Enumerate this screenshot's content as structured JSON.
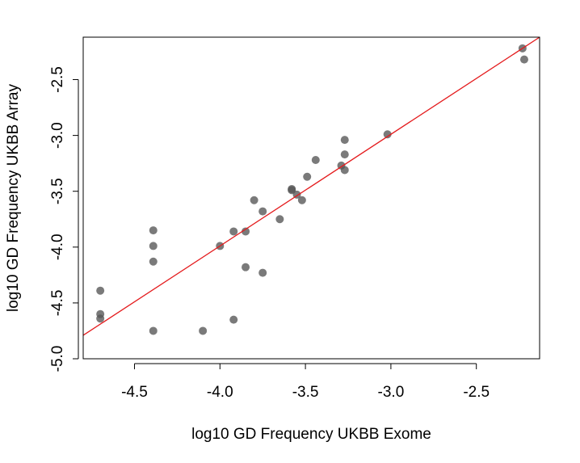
{
  "chart_data": {
    "type": "scatter",
    "title": "",
    "xlabel": "log10 GD Frequency UKBB Exome",
    "ylabel": "log10 GD Frequency UKBB Array",
    "xlim": [
      -4.8,
      -2.13
    ],
    "ylim": [
      -5.0,
      -2.12
    ],
    "x_ticks": [
      -4.5,
      -4.0,
      -3.5,
      -3.0,
      -2.5
    ],
    "x_tick_labels": [
      "-4.5",
      "-4.0",
      "-3.5",
      "-3.0",
      "-2.5"
    ],
    "y_ticks": [
      -5.0,
      -4.5,
      -4.0,
      -3.5,
      -3.0,
      -2.5
    ],
    "y_tick_labels": [
      "-5.0",
      "-4.5",
      "-4.0",
      "-3.5",
      "-3.0",
      "-2.5"
    ],
    "grid": false,
    "legend": "none",
    "point_color": "#555555",
    "line_color": "#e41a1c",
    "regression_line": {
      "x": [
        -4.8,
        -2.13
      ],
      "y": [
        -4.79,
        -2.12
      ]
    },
    "series": [
      {
        "points": [
          {
            "x": -2.23,
            "y": -2.22
          },
          {
            "x": -2.22,
            "y": -2.32
          },
          {
            "x": -3.02,
            "y": -2.99
          },
          {
            "x": -3.27,
            "y": -3.04
          },
          {
            "x": -3.27,
            "y": -3.17
          },
          {
            "x": -3.29,
            "y": -3.27
          },
          {
            "x": -3.27,
            "y": -3.31
          },
          {
            "x": -3.44,
            "y": -3.22
          },
          {
            "x": -3.49,
            "y": -3.37
          },
          {
            "x": -3.58,
            "y": -3.48
          },
          {
            "x": -3.58,
            "y": -3.49
          },
          {
            "x": -3.55,
            "y": -3.53
          },
          {
            "x": -3.52,
            "y": -3.58
          },
          {
            "x": -3.65,
            "y": -3.75
          },
          {
            "x": -3.75,
            "y": -3.68
          },
          {
            "x": -3.8,
            "y": -3.58
          },
          {
            "x": -3.85,
            "y": -3.86
          },
          {
            "x": -3.92,
            "y": -3.86
          },
          {
            "x": -4.0,
            "y": -3.99
          },
          {
            "x": -3.85,
            "y": -4.18
          },
          {
            "x": -3.75,
            "y": -4.23
          },
          {
            "x": -3.92,
            "y": -4.65
          },
          {
            "x": -4.1,
            "y": -4.75
          },
          {
            "x": -4.39,
            "y": -3.85
          },
          {
            "x": -4.39,
            "y": -3.99
          },
          {
            "x": -4.39,
            "y": -4.13
          },
          {
            "x": -4.39,
            "y": -4.75
          },
          {
            "x": -4.7,
            "y": -4.39
          },
          {
            "x": -4.7,
            "y": -4.6
          },
          {
            "x": -4.7,
            "y": -4.64
          }
        ]
      }
    ]
  }
}
